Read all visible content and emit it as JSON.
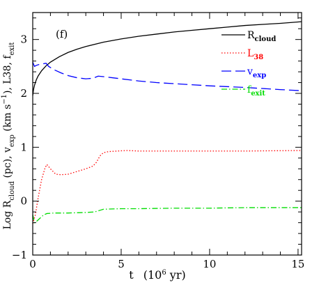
{
  "chart_data": {
    "type": "line",
    "panel_label": "(f)",
    "xlabel": {
      "main": "t",
      "paren_open": "(10",
      "sup": "6",
      "unit": " yr)"
    },
    "ylabel": {
      "part1": "Log R",
      "part1_sub": "cloud",
      "part2": " (pc), v",
      "part2_sub": "exp",
      "part3": " (km s",
      "part3_sup": "−1",
      "part4": "), L38, f",
      "part4_sub": "exit"
    },
    "xlim": [
      0,
      15.2
    ],
    "ylim": [
      -1,
      3.5
    ],
    "xticks": [
      0,
      5,
      10,
      15
    ],
    "yticks": [
      -1,
      0,
      1,
      2,
      3
    ],
    "legend_position": "top-right",
    "series": [
      {
        "name": "R",
        "name_sub": "cloud",
        "color": "#000000",
        "dash": "",
        "x": [
          0,
          0.05,
          0.1,
          0.2,
          0.3,
          0.5,
          0.75,
          1,
          1.5,
          2,
          2.5,
          3,
          4,
          5,
          6,
          7,
          8,
          9,
          10,
          11,
          12,
          13,
          14,
          15.2
        ],
        "y": [
          1.96,
          2.08,
          2.15,
          2.25,
          2.32,
          2.42,
          2.51,
          2.58,
          2.68,
          2.76,
          2.82,
          2.87,
          2.95,
          3.01,
          3.06,
          3.1,
          3.14,
          3.17,
          3.2,
          3.23,
          3.26,
          3.28,
          3.3,
          3.33
        ]
      },
      {
        "name": "L",
        "name_sub": "38",
        "color": "#ff0000",
        "dash": "1.5,2.5",
        "x": [
          0,
          0.15,
          0.3,
          0.5,
          0.7,
          0.8,
          1.0,
          1.3,
          1.6,
          2,
          2.5,
          3,
          3.4,
          3.6,
          3.8,
          4.0,
          4.3,
          4.8,
          5.3,
          6,
          7,
          8,
          10,
          12,
          15.2
        ],
        "y": [
          -0.42,
          -0.25,
          0.05,
          0.4,
          0.62,
          0.68,
          0.6,
          0.5,
          0.49,
          0.5,
          0.55,
          0.6,
          0.65,
          0.72,
          0.84,
          0.9,
          0.92,
          0.93,
          0.94,
          0.93,
          0.93,
          0.93,
          0.93,
          0.93,
          0.94
        ]
      },
      {
        "name": "v",
        "name_sub": "exp",
        "color": "#0000ff",
        "dash": "14,6",
        "x": [
          0,
          0.1,
          0.2,
          0.4,
          0.6,
          0.75,
          0.9,
          1.2,
          1.6,
          2,
          2.5,
          3,
          3.4,
          3.7,
          4,
          4.5,
          5,
          6,
          7,
          8,
          9,
          10,
          12,
          14,
          15.2
        ],
        "y": [
          2.58,
          2.5,
          2.52,
          2.54,
          2.55,
          2.56,
          2.5,
          2.44,
          2.38,
          2.33,
          2.29,
          2.27,
          2.28,
          2.32,
          2.31,
          2.29,
          2.27,
          2.23,
          2.2,
          2.18,
          2.16,
          2.14,
          2.11,
          2.07,
          2.05
        ]
      },
      {
        "name": "f",
        "name_sub": "exit",
        "color": "#00dd00",
        "dash": "8,3,1.5,3",
        "x": [
          0,
          0.1,
          0.2,
          0.4,
          0.6,
          0.8,
          1.2,
          2,
          3,
          3.5,
          3.8,
          4,
          5,
          6,
          8,
          10,
          12,
          15.2
        ],
        "y": [
          -0.25,
          -0.4,
          -0.38,
          -0.32,
          -0.26,
          -0.23,
          -0.22,
          -0.22,
          -0.21,
          -0.2,
          -0.17,
          -0.15,
          -0.14,
          -0.14,
          -0.13,
          -0.13,
          -0.12,
          -0.12
        ]
      }
    ]
  }
}
